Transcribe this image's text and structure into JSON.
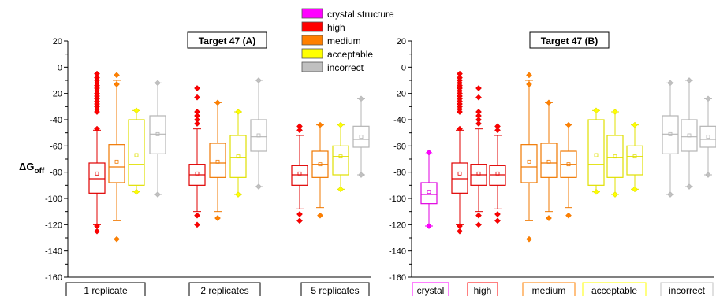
{
  "colors": {
    "crystal": "#ff00ff",
    "high": "#ff0000",
    "medium": "#ff8000",
    "acceptable": "#ffff00",
    "incorrect": "#c0c0c0",
    "high_edge": "#e00000",
    "medium_edge": "#f07800",
    "acceptable_edge": "#e0e000",
    "incorrect_edge": "#b4b4b4",
    "crystal_edge": "#e000e0"
  },
  "chart_data": [
    {
      "type": "box",
      "title": "Target 47 (A)",
      "ylabel": "ΔG_off",
      "ylabel_main": "ΔG",
      "ylabel_sub": "off",
      "ylim": [
        -160,
        20
      ],
      "yticks": [
        20,
        0,
        -20,
        -40,
        -60,
        -80,
        -100,
        -120,
        -140,
        -160
      ],
      "groups": [
        "1 replicate",
        "2 replicates",
        "5 replicates"
      ],
      "series": [
        {
          "group": "1 replicate",
          "class": "high",
          "q1": -96,
          "median": -85,
          "q3": -73,
          "whisker_low": -120,
          "whisker_high": -48,
          "mean": -81,
          "outliers": [
            -5,
            -8,
            -10,
            -12,
            -14,
            -16,
            -18,
            -20,
            -22,
            -24,
            -26,
            -28,
            -30,
            -32,
            -34,
            -47,
            -121,
            -125
          ]
        },
        {
          "group": "1 replicate",
          "class": "medium",
          "q1": -88,
          "median": -76,
          "q3": -59,
          "whisker_low": -117,
          "whisker_high": -10,
          "mean": -72,
          "outliers": [
            -6,
            -13,
            -131
          ]
        },
        {
          "group": "1 replicate",
          "class": "acceptable",
          "q1": -90,
          "median": -74,
          "q3": -40,
          "whisker_low": -95,
          "whisker_high": -33,
          "mean": -67,
          "outliers": [
            -33,
            -95
          ]
        },
        {
          "group": "1 replicate",
          "class": "incorrect",
          "q1": -66,
          "median": -51,
          "q3": -37,
          "whisker_low": -97,
          "whisker_high": -12,
          "mean": -51,
          "outliers": [
            -12,
            -97
          ]
        },
        {
          "group": "2 replicates",
          "class": "high",
          "q1": -90,
          "median": -82,
          "q3": -74,
          "whisker_low": -110,
          "whisker_high": -47,
          "mean": -81,
          "outliers": [
            -16,
            -23,
            -34,
            -37,
            -40,
            -43,
            -113,
            -120
          ]
        },
        {
          "group": "2 replicates",
          "class": "medium",
          "q1": -84,
          "median": -73,
          "q3": -58,
          "whisker_low": -110,
          "whisker_high": -27,
          "mean": -72,
          "outliers": [
            -27,
            -115
          ]
        },
        {
          "group": "2 replicates",
          "class": "acceptable",
          "q1": -84,
          "median": -69,
          "q3": -52,
          "whisker_low": -97,
          "whisker_high": -34,
          "mean": -68,
          "outliers": [
            -34,
            -97
          ]
        },
        {
          "group": "2 replicates",
          "class": "incorrect",
          "q1": -64,
          "median": -53,
          "q3": -40,
          "whisker_low": -91,
          "whisker_high": -10,
          "mean": -52,
          "outliers": [
            -10,
            -91
          ]
        },
        {
          "group": "5 replicates",
          "class": "high",
          "q1": -90,
          "median": -82,
          "q3": -75,
          "whisker_low": -108,
          "whisker_high": -52,
          "mean": -81,
          "outliers": [
            -45,
            -48,
            -112,
            -117
          ]
        },
        {
          "group": "5 replicates",
          "class": "medium",
          "q1": -84,
          "median": -74,
          "q3": -64,
          "whisker_low": -107,
          "whisker_high": -44,
          "mean": -74,
          "outliers": [
            -44,
            -113
          ]
        },
        {
          "group": "5 replicates",
          "class": "acceptable",
          "q1": -82,
          "median": -68,
          "q3": -60,
          "whisker_low": -93,
          "whisker_high": -44,
          "mean": -68,
          "outliers": [
            -44,
            -93
          ]
        },
        {
          "group": "5 replicates",
          "class": "incorrect",
          "q1": -61,
          "median": -55,
          "q3": -45,
          "whisker_low": -82,
          "whisker_high": -24,
          "mean": -53,
          "outliers": [
            -24,
            -82
          ]
        }
      ]
    },
    {
      "type": "box",
      "title": "Target 47 (B)",
      "ylabel": "",
      "ylim": [
        -160,
        20
      ],
      "yticks": [
        20,
        0,
        -20,
        -40,
        -60,
        -80,
        -100,
        -120,
        -140,
        -160
      ],
      "groups": [
        "crystal",
        "high",
        "medium",
        "acceptable",
        "incorrect"
      ],
      "series": [
        {
          "group": "crystal",
          "class": "crystal",
          "q1": -104,
          "median": -97,
          "q3": -88,
          "whisker_low": -121,
          "whisker_high": -66,
          "mean": -95,
          "outliers": [
            -65,
            -121
          ]
        },
        {
          "group": "high",
          "class": "high",
          "q1": -96,
          "median": -85,
          "q3": -73,
          "whisker_low": -120,
          "whisker_high": -48,
          "mean": -81,
          "outliers": [
            -5,
            -8,
            -10,
            -12,
            -14,
            -16,
            -18,
            -20,
            -22,
            -24,
            -26,
            -28,
            -30,
            -32,
            -34,
            -47,
            -121,
            -125
          ]
        },
        {
          "group": "high",
          "class": "high",
          "q1": -90,
          "median": -82,
          "q3": -74,
          "whisker_low": -110,
          "whisker_high": -47,
          "mean": -81,
          "outliers": [
            -16,
            -23,
            -34,
            -37,
            -40,
            -43,
            -113,
            -120
          ]
        },
        {
          "group": "high",
          "class": "high",
          "q1": -90,
          "median": -82,
          "q3": -75,
          "whisker_low": -108,
          "whisker_high": -52,
          "mean": -81,
          "outliers": [
            -45,
            -48,
            -112,
            -117
          ]
        },
        {
          "group": "medium",
          "class": "medium",
          "q1": -88,
          "median": -76,
          "q3": -59,
          "whisker_low": -117,
          "whisker_high": -10,
          "mean": -72,
          "outliers": [
            -6,
            -13,
            -131
          ]
        },
        {
          "group": "medium",
          "class": "medium",
          "q1": -84,
          "median": -73,
          "q3": -58,
          "whisker_low": -110,
          "whisker_high": -27,
          "mean": -72,
          "outliers": [
            -27,
            -115
          ]
        },
        {
          "group": "medium",
          "class": "medium",
          "q1": -84,
          "median": -74,
          "q3": -64,
          "whisker_low": -107,
          "whisker_high": -44,
          "mean": -74,
          "outliers": [
            -44,
            -113
          ]
        },
        {
          "group": "acceptable",
          "class": "acceptable",
          "q1": -90,
          "median": -74,
          "q3": -40,
          "whisker_low": -95,
          "whisker_high": -33,
          "mean": -67,
          "outliers": [
            -33,
            -95
          ]
        },
        {
          "group": "acceptable",
          "class": "acceptable",
          "q1": -84,
          "median": -69,
          "q3": -52,
          "whisker_low": -97,
          "whisker_high": -34,
          "mean": -68,
          "outliers": [
            -34,
            -97
          ]
        },
        {
          "group": "acceptable",
          "class": "acceptable",
          "q1": -82,
          "median": -68,
          "q3": -60,
          "whisker_low": -93,
          "whisker_high": -44,
          "mean": -68,
          "outliers": [
            -44,
            -93
          ]
        },
        {
          "group": "incorrect",
          "class": "incorrect",
          "q1": -66,
          "median": -51,
          "q3": -37,
          "whisker_low": -97,
          "whisker_high": -12,
          "mean": -51,
          "outliers": [
            -12,
            -97
          ]
        },
        {
          "group": "incorrect",
          "class": "incorrect",
          "q1": -64,
          "median": -53,
          "q3": -40,
          "whisker_low": -91,
          "whisker_high": -10,
          "mean": -52,
          "outliers": [
            -10,
            -91
          ]
        },
        {
          "group": "incorrect",
          "class": "incorrect",
          "q1": -61,
          "median": -55,
          "q3": -45,
          "whisker_low": -82,
          "whisker_high": -24,
          "mean": -53,
          "outliers": [
            -24,
            -82
          ]
        }
      ]
    }
  ],
  "legend": [
    {
      "label": "crystal structure",
      "class": "crystal"
    },
    {
      "label": "high",
      "class": "high"
    },
    {
      "label": "medium",
      "class": "medium"
    },
    {
      "label": "acceptable",
      "class": "acceptable"
    },
    {
      "label": "incorrect",
      "class": "incorrect"
    }
  ]
}
